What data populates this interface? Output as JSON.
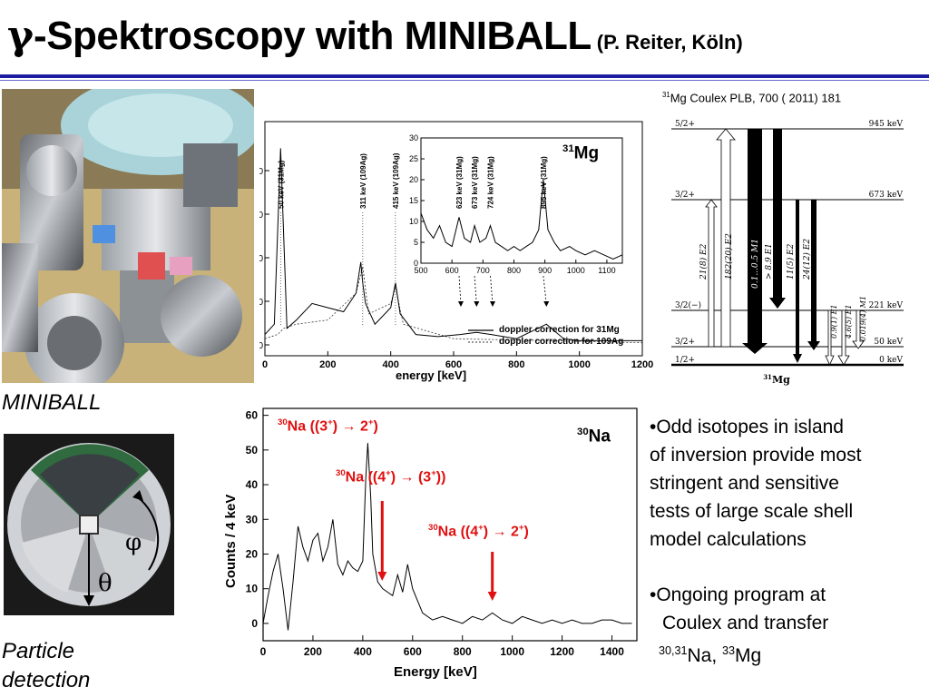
{
  "title": {
    "gamma": "γ",
    "main": "-Spektroscopy with MINIBALL",
    "sub": "(P. Reiter, Köln)"
  },
  "captions": {
    "miniball": "MINIBALL",
    "particle_line1": "Particle",
    "particle_line2": "detection"
  },
  "detector_symbols": {
    "phi": "φ",
    "theta": "θ"
  },
  "level_scheme": {
    "reference_sup": "31",
    "reference_text": "Mg Coulex PLB, 700 ( 2011) 181",
    "nucleus_sup": "31",
    "nucleus": "Mg",
    "levels": [
      {
        "spin": "5/2+",
        "energy": "945 keV"
      },
      {
        "spin": "3/2+",
        "energy": "673 keV"
      },
      {
        "spin": "3/2(−)",
        "energy": "221 keV"
      },
      {
        "spin": "3/2+",
        "energy": "50 keV"
      },
      {
        "spin": "1/2+",
        "energy": "0 keV"
      }
    ],
    "transitions": [
      "21(8)  E2",
      "182(20)  E2",
      "0.1...0.5  M1",
      "> 8.9  E1",
      "11(5)  E2",
      "24(12)  E2",
      "0.9(1)  E1",
      "4.6(5)  E1",
      "0.019(4)  M1"
    ]
  },
  "bullets": {
    "b1": [
      "•Odd isotopes in island",
      "of inversion provide most",
      "stringent and sensitive",
      "tests of large scale shell",
      "model calculations"
    ],
    "b2_line1": "•Ongoing program at",
    "b2_line2": "Coulex and transfer",
    "b2_line3_sup1": "30,31",
    "b2_line3_mid": "Na, ",
    "b2_line3_sup2": "33",
    "b2_line3_end": "Mg"
  },
  "chart_data": [
    {
      "type": "line",
      "nucleus_label_sup": "31",
      "nucleus_label": "Mg",
      "xlabel": "energy [keV]",
      "ylabel": "",
      "xlim": [
        0,
        1200
      ],
      "x_ticks": [
        "0",
        "200",
        "400",
        "600",
        "800",
        "1000",
        "1200"
      ],
      "y_ticks": [
        "0",
        "0",
        "0",
        "0",
        "0"
      ],
      "legend": [
        "doppler correction for 31Mg",
        "doppler correction for 109Ag"
      ],
      "peak_labels": [
        "50 keV  (31Mg)",
        "311 keV  (109Ag)",
        "415 keV  (109Ag)"
      ],
      "series": [
        {
          "name": "doppler correction for 31Mg",
          "x": [
            0,
            30,
            50,
            70,
            100,
            150,
            200,
            250,
            290,
            305,
            311,
            320,
            350,
            400,
            415,
            430,
            480,
            550,
            620,
            673,
            720,
            800,
            895,
            950,
            1000,
            1100,
            1200
          ],
          "y": [
            0.05,
            0.1,
            0.95,
            0.08,
            0.12,
            0.2,
            0.18,
            0.16,
            0.25,
            0.4,
            0.3,
            0.2,
            0.1,
            0.18,
            0.3,
            0.15,
            0.05,
            0.04,
            0.05,
            0.06,
            0.05,
            0.03,
            0.1,
            0.03,
            0.02,
            0.02,
            0.02
          ]
        },
        {
          "name": "doppler correction for 109Ag",
          "x": [
            0,
            40,
            60,
            100,
            200,
            290,
            311,
            330,
            400,
            415,
            440,
            600,
            900,
            1200
          ],
          "y": [
            0.03,
            0.05,
            0.08,
            0.1,
            0.12,
            0.25,
            0.38,
            0.15,
            0.2,
            0.28,
            0.1,
            0.03,
            0.02,
            0.01
          ]
        }
      ],
      "inset": {
        "xlim": [
          500,
          1150
        ],
        "ylim": [
          0,
          30
        ],
        "x_ticks": [
          "500",
          "600",
          "700",
          "800",
          "900",
          "1000",
          "1100"
        ],
        "y_ticks": [
          "0",
          "5",
          "10",
          "15",
          "20",
          "25",
          "30"
        ],
        "peak_labels": [
          "623 keV  (31Mg)",
          "673 keV  (31Mg)",
          "724 keV  (31Mg)",
          "895 keV  (31Mg)"
        ],
        "x": [
          500,
          520,
          540,
          560,
          580,
          600,
          623,
          640,
          660,
          673,
          690,
          710,
          724,
          740,
          760,
          780,
          800,
          820,
          840,
          860,
          880,
          895,
          910,
          930,
          950,
          980,
          1000,
          1030,
          1060,
          1090,
          1120,
          1150
        ],
        "y": [
          12,
          8,
          6,
          9,
          5,
          4,
          11,
          6,
          5,
          9,
          5,
          6,
          9,
          5,
          4,
          3,
          4,
          3,
          4,
          5,
          8,
          20,
          8,
          5,
          3,
          4,
          3,
          2,
          3,
          2,
          1,
          2
        ]
      }
    },
    {
      "type": "line",
      "nucleus_label_sup": "30",
      "nucleus_label": "Na",
      "xlabel": "Energy [keV]",
      "ylabel": "Counts / 4 keV",
      "xlim": [
        0,
        1500
      ],
      "ylim": [
        -5,
        62
      ],
      "x_ticks": [
        "0",
        "200",
        "400",
        "600",
        "800",
        "1000",
        "1200",
        "1400"
      ],
      "y_ticks": [
        "0",
        "10",
        "20",
        "30",
        "40",
        "50",
        "60"
      ],
      "annotations": [
        {
          "sup1": "30",
          "text1": "Na ((3",
          "sup2": "+",
          "text2": ") → 2",
          "sup3": "+",
          "text3": ")"
        },
        {
          "sup1": "30",
          "text1": "Na ((4",
          "sup2": "+",
          "text2": ") → (3",
          "sup3": "+",
          "text3": "))"
        },
        {
          "sup1": "30",
          "text1": "Na ((4",
          "sup2": "+",
          "text2": ") → 2",
          "sup3": "+",
          "text3": ")"
        }
      ],
      "x": [
        0,
        20,
        40,
        60,
        80,
        100,
        120,
        140,
        160,
        180,
        200,
        220,
        240,
        260,
        280,
        300,
        320,
        340,
        360,
        380,
        400,
        412,
        420,
        432,
        440,
        460,
        480,
        500,
        520,
        540,
        560,
        580,
        600,
        640,
        680,
        720,
        760,
        800,
        840,
        880,
        920,
        960,
        1000,
        1040,
        1080,
        1120,
        1160,
        1200,
        1240,
        1280,
        1320,
        1360,
        1400,
        1440,
        1480
      ],
      "y": [
        0,
        8,
        15,
        20,
        10,
        -2,
        12,
        28,
        22,
        18,
        24,
        26,
        18,
        22,
        30,
        17,
        14,
        18,
        16,
        15,
        18,
        42,
        52,
        36,
        20,
        12,
        10,
        9,
        8,
        14,
        9,
        17,
        10,
        3,
        1,
        2,
        1,
        0,
        2,
        1,
        3,
        1,
        0,
        2,
        1,
        0,
        1,
        0,
        1,
        0,
        0,
        1,
        1,
        0,
        0
      ]
    }
  ]
}
